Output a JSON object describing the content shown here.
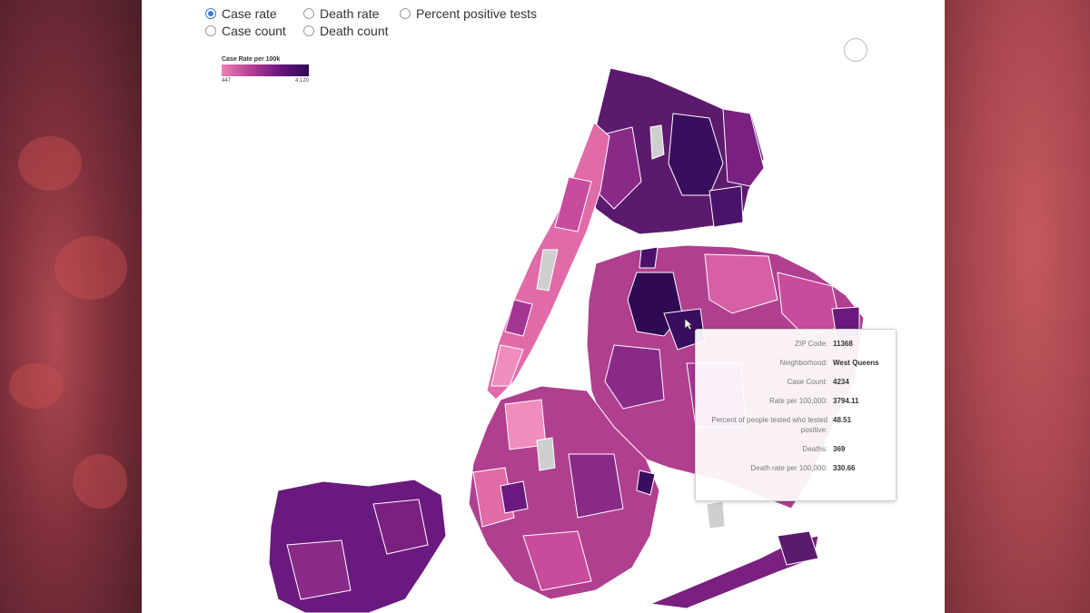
{
  "metric_options": [
    {
      "label": "Case rate",
      "checked": true
    },
    {
      "label": "Death rate",
      "checked": false
    },
    {
      "label": "Percent positive tests",
      "checked": false
    },
    {
      "label": "Case count",
      "checked": false
    },
    {
      "label": "Death count",
      "checked": false
    }
  ],
  "legend": {
    "title": "Case Rate per 100k",
    "min_label": "447",
    "max_label": "4,120",
    "colors": [
      "#ee7fb3",
      "#b83d95",
      "#6a1580",
      "#2e0a55"
    ]
  },
  "tooltip": {
    "rows": [
      {
        "key": "ZIP Code:",
        "value": "11368"
      },
      {
        "key": "Neighborhood:",
        "value": "West Queens"
      },
      {
        "key": "Case Count:",
        "value": "4234"
      },
      {
        "key": "Rate per 100,000:",
        "value": "3794.11"
      },
      {
        "key": "Percent of people tested who tested positive:",
        "value": "48.51"
      },
      {
        "key": "Deaths:",
        "value": "369"
      },
      {
        "key": "Death rate per 100,000:",
        "value": "330.66"
      }
    ]
  },
  "map_colors": {
    "no_data": "#cfcfcf",
    "water": "#ffffff"
  }
}
